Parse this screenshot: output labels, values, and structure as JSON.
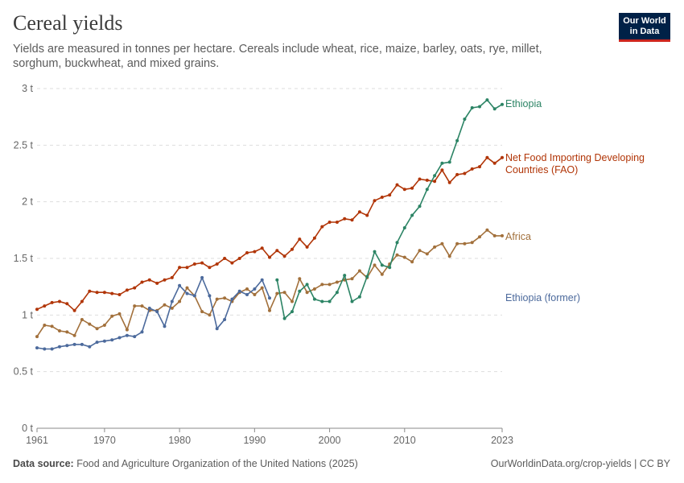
{
  "header": {
    "title": "Cereal yields",
    "subtitle": "Yields are measured in tonnes per hectare. Cereals include wheat, rice, maize, barley, oats, rye, millet, sorghum, buckwheat, and mixed grains.",
    "logo_line1": "Our World",
    "logo_line2": "in Data"
  },
  "footer": {
    "source_label": "Data source:",
    "source_text": "Food and Agriculture Organization of the United Nations (2025)",
    "url_text": "OurWorldinData.org/crop-yields | CC BY"
  },
  "chart_data": {
    "type": "line",
    "title": "Cereal yields",
    "xlabel": "",
    "ylabel": "",
    "xlim": [
      1961,
      2023
    ],
    "ylim": [
      0,
      3
    ],
    "x_ticks": [
      1961,
      1970,
      1980,
      1990,
      2000,
      2010,
      2023
    ],
    "y_ticks": [
      {
        "value": 0,
        "label": "0 t"
      },
      {
        "value": 0.5,
        "label": "0.5 t"
      },
      {
        "value": 1,
        "label": "1 t"
      },
      {
        "value": 1.5,
        "label": "1.5 t"
      },
      {
        "value": 2,
        "label": "2 t"
      },
      {
        "value": 2.5,
        "label": "2.5 t"
      },
      {
        "value": 3,
        "label": "3 t"
      }
    ],
    "grid": true,
    "series": [
      {
        "name": "Net Food Importing Developing Countries (FAO)",
        "label_lines": [
          "Net Food Importing Developing",
          "Countries (FAO)"
        ],
        "color": "#b13507",
        "start": 1961,
        "values": [
          1.05,
          1.08,
          1.11,
          1.12,
          1.1,
          1.04,
          1.12,
          1.21,
          1.2,
          1.2,
          1.19,
          1.18,
          1.22,
          1.24,
          1.29,
          1.31,
          1.28,
          1.31,
          1.33,
          1.42,
          1.42,
          1.45,
          1.46,
          1.42,
          1.45,
          1.5,
          1.46,
          1.5,
          1.55,
          1.56,
          1.59,
          1.51,
          1.57,
          1.52,
          1.58,
          1.67,
          1.6,
          1.68,
          1.78,
          1.82,
          1.82,
          1.85,
          1.84,
          1.91,
          1.88,
          2.01,
          2.04,
          2.06,
          2.15,
          2.11,
          2.12,
          2.2,
          2.19,
          2.18,
          2.28,
          2.17,
          2.24,
          2.25,
          2.29,
          2.31,
          2.39,
          2.34,
          2.39
        ]
      },
      {
        "name": "Africa",
        "label_lines": [
          "Africa"
        ],
        "color": "#a2703b",
        "start": 1961,
        "values": [
          0.81,
          0.91,
          0.9,
          0.86,
          0.85,
          0.82,
          0.96,
          0.92,
          0.88,
          0.91,
          0.99,
          1.01,
          0.87,
          1.08,
          1.08,
          1.04,
          1.04,
          1.09,
          1.06,
          1.12,
          1.24,
          1.17,
          1.03,
          1.0,
          1.14,
          1.15,
          1.12,
          1.2,
          1.23,
          1.18,
          1.24,
          1.04,
          1.19,
          1.2,
          1.12,
          1.32,
          1.2,
          1.23,
          1.27,
          1.27,
          1.29,
          1.31,
          1.32,
          1.39,
          1.33,
          1.44,
          1.36,
          1.45,
          1.53,
          1.51,
          1.47,
          1.57,
          1.54,
          1.6,
          1.63,
          1.52,
          1.63,
          1.63,
          1.64,
          1.69,
          1.75,
          1.7,
          1.7
        ]
      },
      {
        "name": "Ethiopia (former)",
        "label_lines": [
          "Ethiopia (former)"
        ],
        "color": "#4c6a9c",
        "start": 1961,
        "values": [
          0.71,
          0.7,
          0.7,
          0.72,
          0.73,
          0.74,
          0.74,
          0.72,
          0.76,
          0.77,
          0.78,
          0.8,
          0.82,
          0.81,
          0.85,
          1.06,
          1.03,
          0.9,
          1.12,
          1.26,
          1.19,
          1.17,
          1.33,
          1.17,
          0.88,
          0.96,
          1.14,
          1.21,
          1.18,
          1.23,
          1.31,
          1.15
        ]
      },
      {
        "name": "Ethiopia",
        "label_lines": [
          "Ethiopia"
        ],
        "color": "#2c8465",
        "start": 1993,
        "values": [
          1.31,
          0.97,
          1.03,
          1.21,
          1.27,
          1.14,
          1.12,
          1.12,
          1.2,
          1.35,
          1.12,
          1.16,
          1.34,
          1.56,
          1.44,
          1.42,
          1.64,
          1.77,
          1.88,
          1.96,
          2.11,
          2.23,
          2.34,
          2.35,
          2.54,
          2.73,
          2.83,
          2.84,
          2.9,
          2.82,
          2.86
        ]
      }
    ]
  }
}
